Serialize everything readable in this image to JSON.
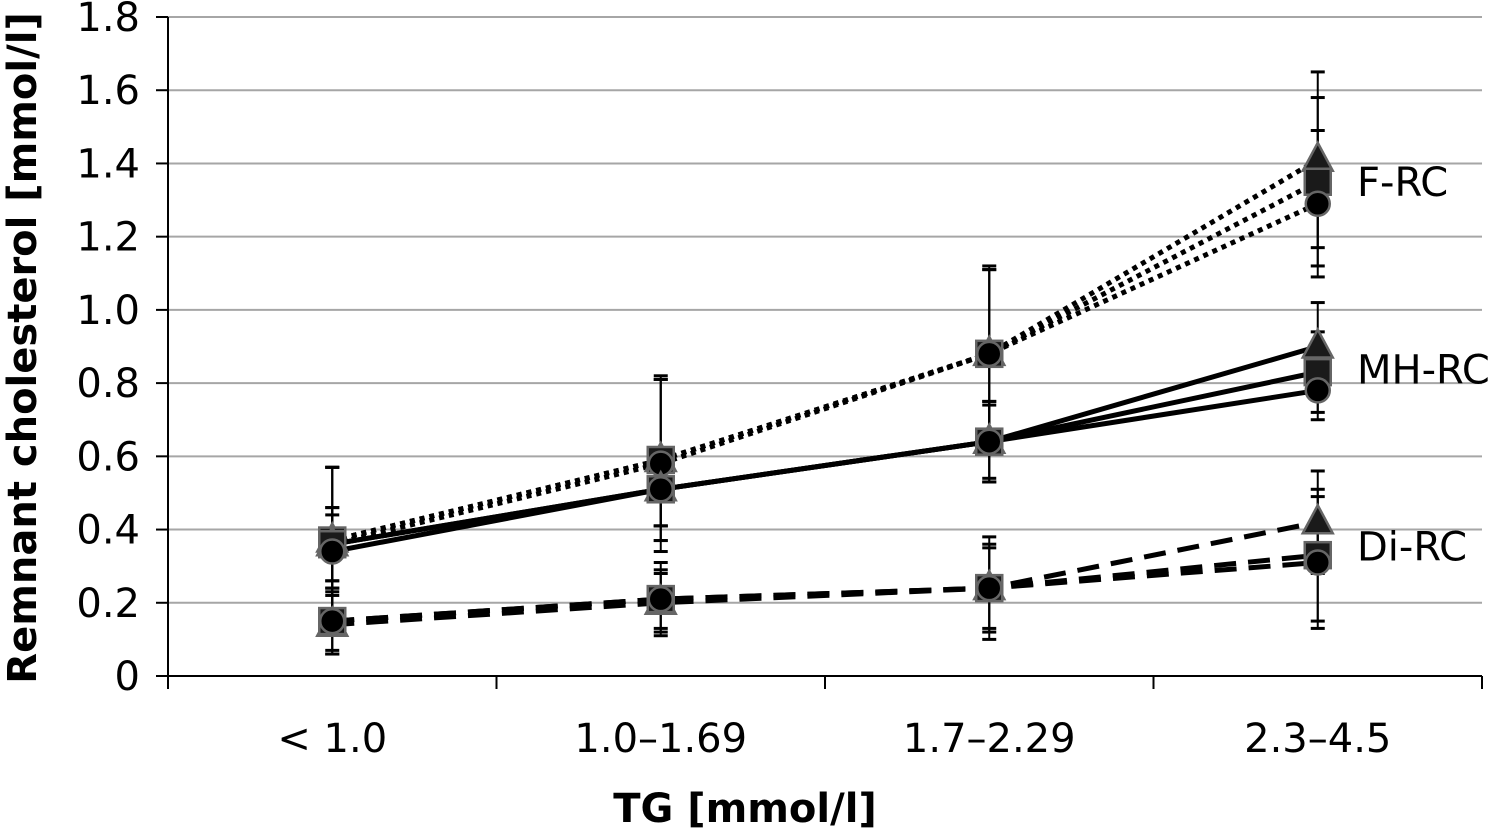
{
  "chart_data": {
    "type": "line",
    "title": "",
    "xlabel": "TG [mmol/l]",
    "ylabel": "Remnant cholesterol [mmol/l]",
    "categories": [
      "< 1.0",
      "1.0–1.69",
      "1.7–2.29",
      "2.3–4.5"
    ],
    "ylim": [
      0,
      1.8
    ],
    "yticks": [
      0,
      0.2,
      0.4,
      0.6,
      0.8,
      1.0,
      1.2,
      1.4,
      1.6,
      1.8
    ],
    "ytick_labels": [
      "0",
      "0.2",
      "0.4",
      "0.6",
      "0.8",
      "1.0",
      "1.2",
      "1.4",
      "1.6",
      "1.8"
    ],
    "grid": true,
    "groups": [
      {
        "label": "F-RC",
        "line_style": "dotted",
        "series": [
          {
            "marker": "triangle",
            "values": [
              0.37,
              0.59,
              0.88,
              1.41
            ],
            "err": [
              0.2,
              0.22,
              0.23,
              0.24
            ]
          },
          {
            "marker": "square",
            "values": [
              0.37,
              0.59,
              0.88,
              1.35
            ],
            "err": [
              0.2,
              0.22,
              0.23,
              0.23
            ]
          },
          {
            "marker": "circle",
            "values": [
              0.36,
              0.58,
              0.88,
              1.29
            ],
            "err": [
              0.21,
              0.24,
              0.24,
              0.2
            ]
          }
        ]
      },
      {
        "label": "MH-RC",
        "line_style": "solid",
        "series": [
          {
            "marker": "triangle",
            "values": [
              0.36,
              0.51,
              0.64,
              0.9
            ],
            "err": [
              0.1,
              0.1,
              0.11,
              0.12
            ]
          },
          {
            "marker": "square",
            "values": [
              0.36,
              0.51,
              0.64,
              0.83
            ],
            "err": [
              0.1,
              0.1,
              0.11,
              0.11
            ]
          },
          {
            "marker": "circle",
            "values": [
              0.34,
              0.51,
              0.64,
              0.78
            ],
            "err": [
              0.1,
              0.1,
              0.1,
              0.08
            ]
          }
        ]
      },
      {
        "label": "Di-RC",
        "line_style": "dashed",
        "series": [
          {
            "marker": "triangle",
            "values": [
              0.14,
              0.2,
              0.24,
              0.42
            ],
            "err": [
              0.08,
              0.08,
              0.12,
              0.14
            ]
          },
          {
            "marker": "square",
            "values": [
              0.15,
              0.21,
              0.24,
              0.33
            ],
            "err": [
              0.09,
              0.1,
              0.11,
              0.18
            ]
          },
          {
            "marker": "circle",
            "values": [
              0.15,
              0.21,
              0.24,
              0.31
            ],
            "err": [
              0.08,
              0.08,
              0.14,
              0.18
            ]
          }
        ]
      }
    ]
  }
}
